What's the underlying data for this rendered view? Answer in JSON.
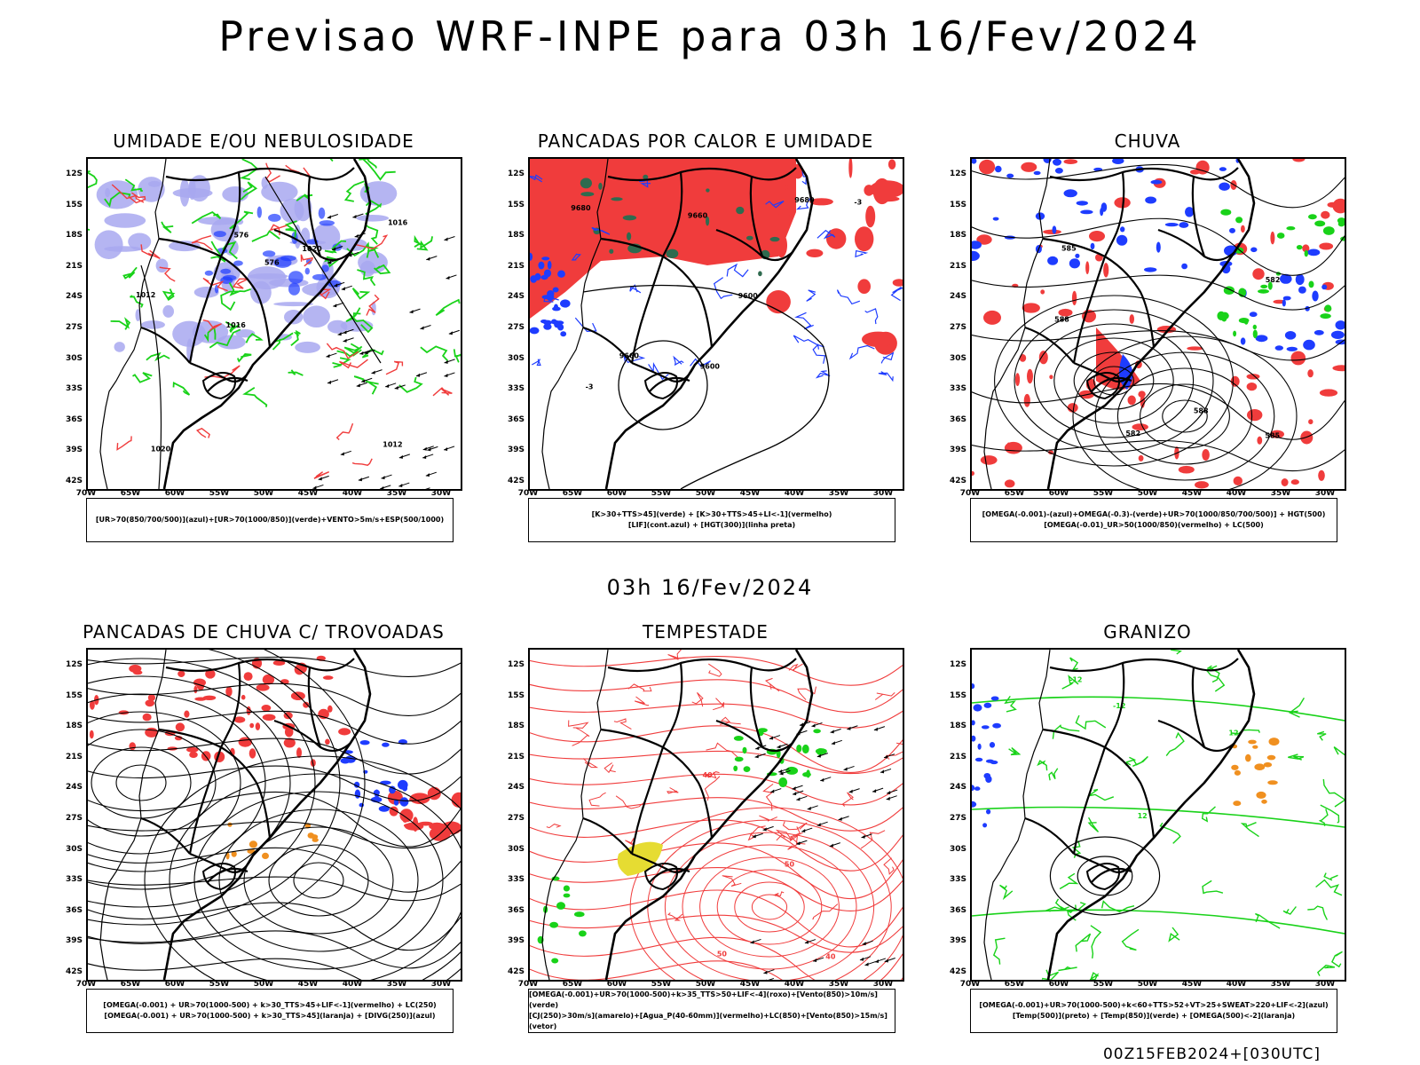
{
  "header": {
    "title": "Previsao WRF-INPE  para 03h 16/Fev/2024"
  },
  "subtitle": "03h 16/Fev/2024",
  "footer": "00Z15FEB2024+[030UTC]",
  "axes": {
    "lat_labels": [
      "12S",
      "15S",
      "18S",
      "21S",
      "24S",
      "27S",
      "30S",
      "33S",
      "36S",
      "39S",
      "42S"
    ],
    "lon_labels": [
      "70W",
      "65W",
      "60W",
      "55W",
      "50W",
      "45W",
      "40W",
      "35W",
      "30W"
    ]
  },
  "colors": {
    "red": "#f03c3c",
    "green": "#19d219",
    "blue": "#1e3cff",
    "lavender": "#a8a8f0",
    "darkgreen": "#2f6b4f",
    "orange": "#f09020",
    "yellow": "#e6dc32"
  },
  "panels": [
    {
      "title": "UMIDADE E/OU NEBULOSIDADE",
      "legend": [
        "[UR>70(850/700/500)](azul)+[UR>70(1000/850)](verde)+VENTO>5m/s+ESP(500/1000)"
      ],
      "labels": [
        "1012",
        "1016",
        "1020",
        "576"
      ]
    },
    {
      "title": "PANCADAS POR CALOR E UMIDADE",
      "legend": [
        "[K>30+TTS>45](verde)  +  [K>30+TTS>45+LI<-1](vermelho)",
        "[LIF](cont.azul)  +  [HGT(300)](linha preta)"
      ],
      "labels": [
        "9660",
        "9600",
        "9680",
        "-3"
      ]
    },
    {
      "title": "CHUVA",
      "legend": [
        "[OMEGA(-0.001)-(azul)+OMEGA(-0.3)-(verde)+UR>70(1000/850/700/500)]  +  HGT(500)",
        "[OMEGA(-0.01)_UR>50(1000/850)(vermelho)  +  LC(500)"
      ],
      "labels": [
        "588",
        "582",
        "585"
      ]
    },
    {
      "title": "PANCADAS DE CHUVA C/ TROVOADAS",
      "legend": [
        "[OMEGA(-0.001) + UR>70(1000-500) + k>30_TTS>45+LIF<-1](vermelho)  +  LC(250)",
        "[OMEGA(-0.001) + UR>70(1000-500) + k>30_TTS>45](laranja)  +  [DIVG(250)](azul)"
      ],
      "labels": []
    },
    {
      "title": "TEMPESTADE",
      "legend": [
        "[OMEGA(-0.001)+UR>70(1000-500)+k>35_TTS>50+LIF<-4](roxo)+[Vento(850)>10m/s](verde)",
        "[CJ(250)>30m/s](amarelo)+[Agua_P(40-60mm)](vermelho)+LC(850)+[Vento(850)>15m/s](vetor)"
      ],
      "labels": [
        "40",
        "50"
      ]
    },
    {
      "title": "GRANIZO",
      "legend": [
        "[OMEGA(-0.001)+UR>70(1000-500)+k<60+TTS>52+VT>25+SWEAT>220+LIF<-2](azul)",
        "[Temp(500)](preto)  +  [Temp(850)](verde)  +  [OMEGA(500)<-2](laranja)"
      ],
      "labels": [
        "12",
        "-12"
      ]
    }
  ]
}
